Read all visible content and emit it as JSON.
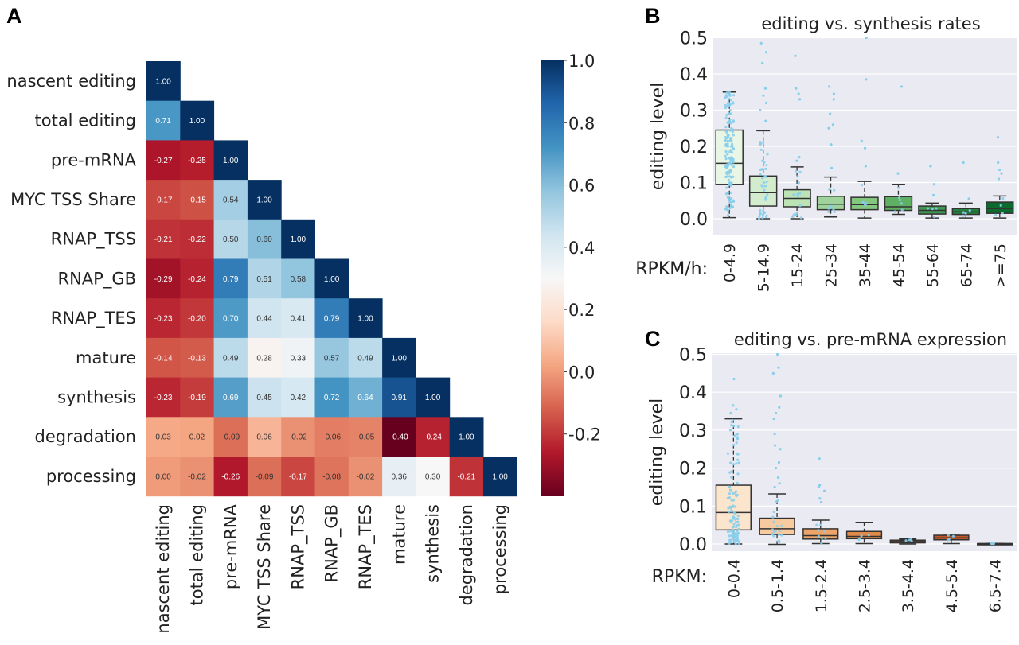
{
  "panels": {
    "A": "A",
    "B": "B",
    "C": "C"
  },
  "chart_data": [
    {
      "panel": "A",
      "type": "heatmap",
      "title": "",
      "labels": [
        "nascent editing",
        "total editing",
        "pre-mRNA",
        "MYC TSS Share",
        "RNAP_TSS",
        "RNAP_GB",
        "RNAP_TES",
        "mature",
        "synthesis",
        "degradation",
        "processing"
      ],
      "matrix_lower_triangle": [
        [
          1.0
        ],
        [
          0.71,
          1.0
        ],
        [
          -0.27,
          -0.25,
          1.0
        ],
        [
          -0.17,
          -0.15,
          0.54,
          1.0
        ],
        [
          -0.21,
          -0.22,
          0.5,
          0.6,
          1.0
        ],
        [
          -0.29,
          -0.24,
          0.79,
          0.51,
          0.58,
          1.0
        ],
        [
          -0.23,
          -0.2,
          0.7,
          0.44,
          0.41,
          0.79,
          1.0
        ],
        [
          -0.14,
          -0.13,
          0.49,
          0.28,
          0.33,
          0.57,
          0.49,
          1.0
        ],
        [
          -0.23,
          -0.19,
          0.69,
          0.45,
          0.42,
          0.72,
          0.64,
          0.91,
          1.0
        ],
        [
          0.03,
          0.02,
          -0.09,
          0.06,
          -0.02,
          -0.06,
          -0.05,
          -0.4,
          -0.24,
          1.0
        ],
        [
          -0.0,
          -0.02,
          -0.26,
          -0.09,
          -0.17,
          -0.08,
          -0.02,
          0.36,
          0.3,
          -0.21,
          1.0
        ]
      ],
      "colormap": "RdBu",
      "colorbar": {
        "range": [
          -0.4,
          1.0
        ],
        "center": 0.3,
        "ticks": [
          1.0,
          0.8,
          0.6,
          0.4,
          0.2,
          0.0,
          -0.2
        ],
        "tick_labels": [
          "1.0",
          "0.8",
          "0.6",
          "0.4",
          "0.2",
          "0.0",
          "-0.2"
        ]
      }
    },
    {
      "panel": "B",
      "type": "box",
      "title": "editing vs. synthesis rates",
      "ylabel": "editing level",
      "xlabel_prefix": "RPKM/h:",
      "ylim": [
        -0.04,
        0.5
      ],
      "yticks": [
        0.0,
        0.1,
        0.2,
        0.3,
        0.4,
        0.5
      ],
      "ytick_labels": [
        "0.0",
        "0.1",
        "0.2",
        "0.3",
        "0.4",
        "0.5"
      ],
      "categories": [
        "0-4.9",
        "5-14.9",
        "15-24",
        "25-34",
        "35-44",
        "45-54",
        "55-64",
        "65-74",
        ">=75"
      ],
      "boxes": [
        {
          "q1": 0.095,
          "median": 0.153,
          "q3": 0.245,
          "whisker_low": 0.003,
          "whisker_high": 0.35,
          "outliers": []
        },
        {
          "q1": 0.035,
          "median": 0.072,
          "q3": 0.118,
          "whisker_low": 0.0,
          "whisker_high": 0.243,
          "outliers": [
            0.27,
            0.3,
            0.32,
            0.34,
            0.36,
            0.43,
            0.46,
            0.485
          ]
        },
        {
          "q1": 0.033,
          "median": 0.056,
          "q3": 0.08,
          "whisker_low": 0.0,
          "whisker_high": 0.143,
          "outliers": [
            0.16,
            0.17,
            0.33,
            0.345,
            0.36,
            0.45
          ]
        },
        {
          "q1": 0.025,
          "median": 0.04,
          "q3": 0.062,
          "whisker_low": 0.005,
          "whisker_high": 0.115,
          "outliers": [
            0.14,
            0.205,
            0.25,
            0.26,
            0.29,
            0.33,
            0.345,
            0.365
          ]
        },
        {
          "q1": 0.025,
          "median": 0.039,
          "q3": 0.059,
          "whisker_low": 0.002,
          "whisker_high": 0.103,
          "outliers": [
            0.145,
            0.195,
            0.215,
            0.385,
            0.5
          ]
        },
        {
          "q1": 0.023,
          "median": 0.033,
          "q3": 0.061,
          "whisker_low": 0.012,
          "whisker_high": 0.095,
          "outliers": [
            0.125,
            0.365
          ]
        },
        {
          "q1": 0.013,
          "median": 0.023,
          "q3": 0.035,
          "whisker_low": 0.002,
          "whisker_high": 0.043,
          "outliers": [
            0.065,
            0.095,
            0.145
          ]
        },
        {
          "q1": 0.012,
          "median": 0.019,
          "q3": 0.028,
          "whisker_low": 0.002,
          "whisker_high": 0.043,
          "outliers": [
            0.055,
            0.155
          ]
        },
        {
          "q1": 0.015,
          "median": 0.028,
          "q3": 0.046,
          "whisker_low": 0.002,
          "whisker_high": 0.063,
          "outliers": [
            0.11,
            0.125,
            0.135,
            0.155,
            0.225
          ]
        }
      ],
      "box_colors": [
        "#e9f5e5",
        "#d4ecce",
        "#bde2b5",
        "#9fd39b",
        "#83c67e",
        "#5fb062",
        "#3f9852",
        "#25813f",
        "#0d6a2f"
      ],
      "point_color": "#87ceeb"
    },
    {
      "panel": "C",
      "type": "box",
      "title": "editing vs. pre-mRNA expression",
      "ylabel": "editing level",
      "xlabel_prefix": "RPKM:",
      "ylim": [
        -0.02,
        0.5
      ],
      "yticks": [
        0.0,
        0.1,
        0.2,
        0.3,
        0.4,
        0.5
      ],
      "ytick_labels": [
        "0.0",
        "0.1",
        "0.2",
        "0.3",
        "0.4",
        "0.5"
      ],
      "categories": [
        "0-0.4",
        "0.5-1.4",
        "1.5-2.4",
        "2.5-3.4",
        "3.5-4.4",
        "4.5-5.4",
        "6.5-7.4"
      ],
      "boxes": [
        {
          "q1": 0.037,
          "median": 0.083,
          "q3": 0.155,
          "whisker_low": 0.0,
          "whisker_high": 0.33,
          "outliers": [
            0.345,
            0.355,
            0.365,
            0.435
          ]
        },
        {
          "q1": 0.025,
          "median": 0.04,
          "q3": 0.068,
          "whisker_low": -0.001,
          "whisker_high": 0.132,
          "outliers": [
            0.15,
            0.16,
            0.175,
            0.2,
            0.215,
            0.25,
            0.26,
            0.29,
            0.33,
            0.345,
            0.36,
            0.39,
            0.45,
            0.465,
            0.5
          ]
        },
        {
          "q1": 0.013,
          "median": 0.022,
          "q3": 0.04,
          "whisker_low": 0.001,
          "whisker_high": 0.063,
          "outliers": [
            0.11,
            0.12,
            0.14,
            0.15,
            0.155,
            0.225
          ]
        },
        {
          "q1": 0.014,
          "median": 0.02,
          "q3": 0.033,
          "whisker_low": 0.001,
          "whisker_high": 0.057,
          "outliers": []
        },
        {
          "q1": 0.003,
          "median": 0.006,
          "q3": 0.01,
          "whisker_low": 0.0,
          "whisker_high": 0.013,
          "outliers": []
        },
        {
          "q1": 0.011,
          "median": 0.016,
          "q3": 0.023,
          "whisker_low": 0.001,
          "whisker_high": 0.023,
          "outliers": []
        },
        {
          "q1": 0.001,
          "median": 0.001,
          "q3": 0.001,
          "whisker_low": 0.001,
          "whisker_high": 0.001,
          "outliers": []
        }
      ],
      "box_colors": [
        "#fce5cd",
        "#f8caa0",
        "#eda469",
        "#e18b4a",
        "#7a4a2d",
        "#c2572a",
        "#8a3a12"
      ],
      "point_color": "#87ceeb"
    }
  ]
}
